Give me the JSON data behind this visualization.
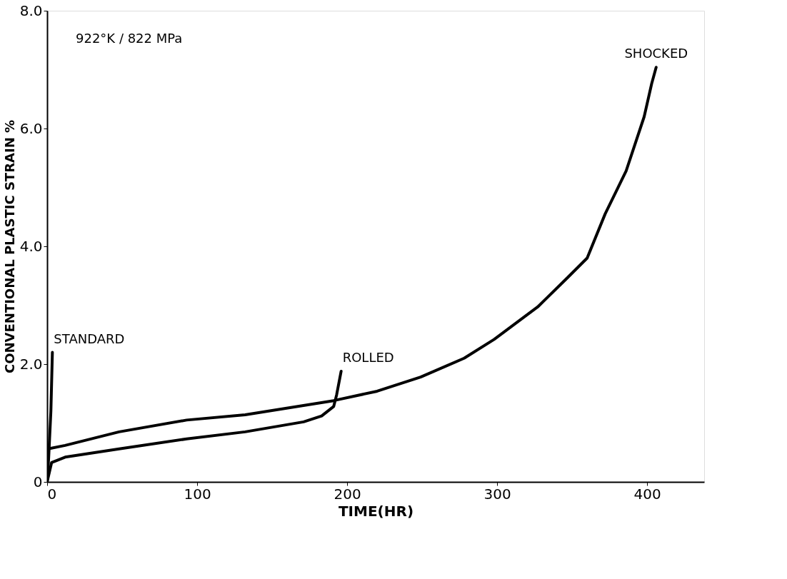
{
  "chart_data": {
    "type": "line",
    "xlabel": "TIME(HR)",
    "ylabel": "CONVENTIONAL PLASTIC STRAIN %",
    "xlim": [
      0,
      438
    ],
    "ylim": [
      0,
      8
    ],
    "xticks": [
      0,
      100,
      200,
      300,
      400
    ],
    "yticks": [
      {
        "value": 0,
        "label": "0"
      },
      {
        "value": 2,
        "label": "2.0"
      },
      {
        "value": 4,
        "label": "4.0"
      },
      {
        "value": 6,
        "label": "6.0"
      },
      {
        "value": 8,
        "label": "8.0"
      }
    ],
    "marker": "none",
    "line_style": "solid",
    "annotations": [
      "922°K / 822 MPa"
    ],
    "series": [
      {
        "name": "SHOCKED",
        "color": "#000000",
        "x": [
          0,
          0.5,
          12,
          48,
          93,
          132,
          191,
          220,
          249,
          278,
          298,
          327,
          347,
          360,
          372,
          386,
          398,
          403,
          406
        ],
        "values": [
          0,
          0.56,
          0.62,
          0.85,
          1.05,
          1.14,
          1.38,
          1.54,
          1.78,
          2.1,
          2.42,
          2.97,
          3.47,
          3.8,
          4.55,
          5.28,
          6.2,
          6.76,
          7.04
        ]
      },
      {
        "name": "ROLLED",
        "color": "#000000",
        "x": [
          0,
          3,
          12,
          48,
          93,
          132,
          171,
          183,
          191,
          193,
          196
        ],
        "values": [
          0,
          0.33,
          0.42,
          0.56,
          0.73,
          0.85,
          1.02,
          1.12,
          1.28,
          1.48,
          1.88
        ]
      },
      {
        "name": "STANDARD",
        "color": "#000000",
        "x": [
          0,
          1,
          2.5,
          3.5
        ],
        "values": [
          0,
          0.4,
          1.2,
          2.2
        ]
      }
    ]
  }
}
